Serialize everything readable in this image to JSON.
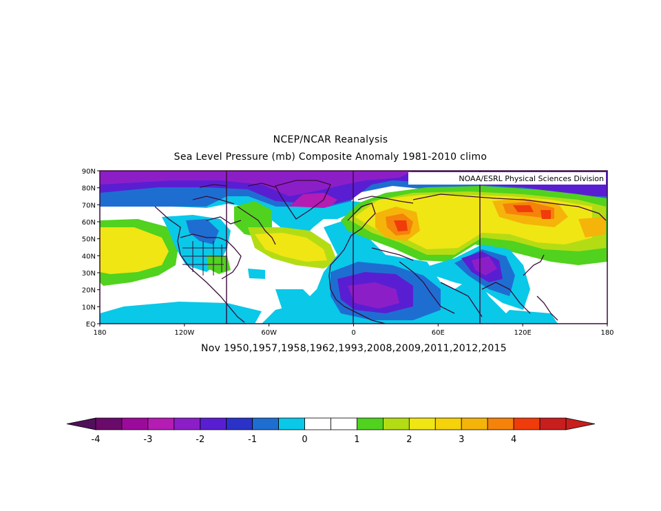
{
  "title_line1": "NCEP/NCAR Reanalysis",
  "title_line2": "Sea Level Pressure (mb) Composite Anomaly 1981-2010 climo",
  "credit": "NOAA/ESRL Physical Sciences Division",
  "composite_years": "Nov 1950,1957,1958,1962,1993,2008,2009,2011,2012,2015",
  "lat_labels": [
    "EQ",
    "10N",
    "20N",
    "30N",
    "40N",
    "50N",
    "60N",
    "70N",
    "80N",
    "90N"
  ],
  "lon_labels": [
    "180",
    "120W",
    "60W",
    "0",
    "60E",
    "120E",
    "180"
  ],
  "colorbar": {
    "labels": [
      "-4",
      "-3",
      "-2",
      "-1",
      "0",
      "1",
      "2",
      "3",
      "4"
    ],
    "colors": [
      "#6a0a6a",
      "#9b0a9b",
      "#b41cb4",
      "#8c1ec8",
      "#5a1ed2",
      "#2a32c8",
      "#1e6ed2",
      "#0ac8e8",
      "#ffffff",
      "#ffffff",
      "#50d21e",
      "#b4dc14",
      "#f0e614",
      "#f5d20a",
      "#f5b40a",
      "#f5820a",
      "#f03c0a",
      "#c81e1e"
    ],
    "under_color": "#50105a",
    "over_color": "#c81e1e"
  }
}
